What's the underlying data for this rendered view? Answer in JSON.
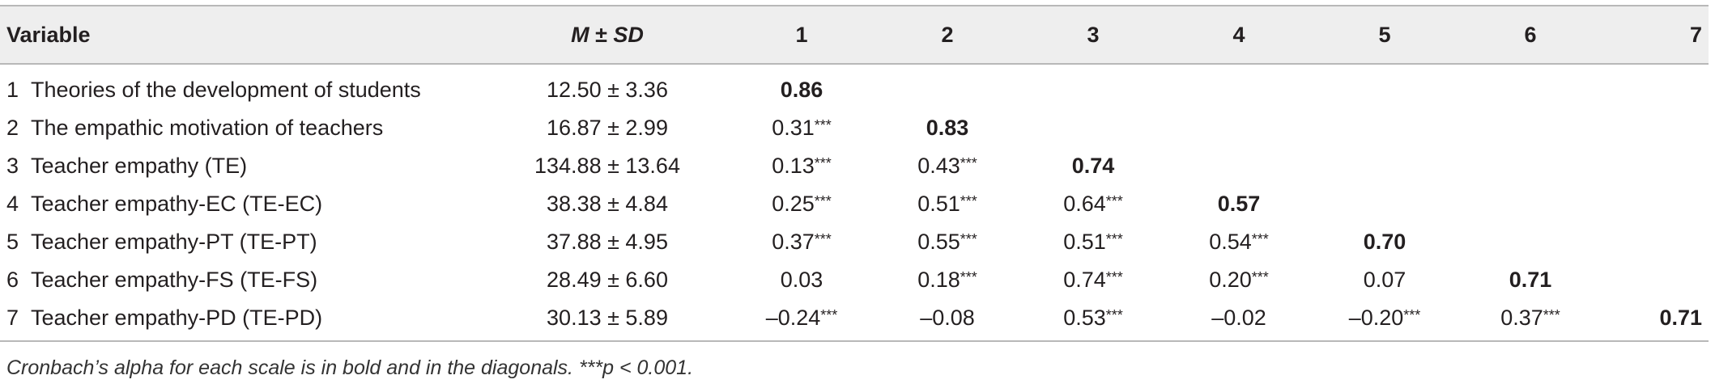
{
  "table": {
    "header": {
      "variable": "Variable",
      "m": "M",
      "pm": " ± ",
      "sd": "SD",
      "cols": [
        "1",
        "2",
        "3",
        "4",
        "5",
        "6",
        "7"
      ]
    },
    "rows": [
      {
        "num": "1",
        "name": "Theories of the development of students",
        "msd": "12.50 ± 3.36",
        "cells": [
          {
            "v": "0.86",
            "diag": true
          },
          {
            "v": ""
          },
          {
            "v": ""
          },
          {
            "v": ""
          },
          {
            "v": ""
          },
          {
            "v": ""
          },
          {
            "v": ""
          }
        ]
      },
      {
        "num": "2",
        "name": "The empathic motivation of teachers",
        "msd": "16.87 ± 2.99",
        "cells": [
          {
            "v": "0.31",
            "sig": "***"
          },
          {
            "v": "0.83",
            "diag": true
          },
          {
            "v": ""
          },
          {
            "v": ""
          },
          {
            "v": ""
          },
          {
            "v": ""
          },
          {
            "v": ""
          }
        ]
      },
      {
        "num": "3",
        "name": "Teacher empathy (TE)",
        "msd": "134.88 ± 13.64",
        "cells": [
          {
            "v": "0.13",
            "sig": "***"
          },
          {
            "v": "0.43",
            "sig": "***"
          },
          {
            "v": "0.74",
            "diag": true
          },
          {
            "v": ""
          },
          {
            "v": ""
          },
          {
            "v": ""
          },
          {
            "v": ""
          }
        ]
      },
      {
        "num": "4",
        "name": "Teacher empathy-EC (TE-EC)",
        "msd": "38.38 ± 4.84",
        "cells": [
          {
            "v": "0.25",
            "sig": "***"
          },
          {
            "v": "0.51",
            "sig": "***"
          },
          {
            "v": "0.64",
            "sig": "***"
          },
          {
            "v": "0.57",
            "diag": true
          },
          {
            "v": ""
          },
          {
            "v": ""
          },
          {
            "v": ""
          }
        ]
      },
      {
        "num": "5",
        "name": "Teacher empathy-PT (TE-PT)",
        "msd": "37.88 ± 4.95",
        "cells": [
          {
            "v": "0.37",
            "sig": "***"
          },
          {
            "v": "0.55",
            "sig": "***"
          },
          {
            "v": "0.51",
            "sig": "***"
          },
          {
            "v": "0.54",
            "sig": "***"
          },
          {
            "v": "0.70",
            "diag": true
          },
          {
            "v": ""
          },
          {
            "v": ""
          }
        ]
      },
      {
        "num": "6",
        "name": "Teacher empathy-FS (TE-FS)",
        "msd": "28.49 ± 6.60",
        "cells": [
          {
            "v": "0.03"
          },
          {
            "v": "0.18",
            "sig": "***"
          },
          {
            "v": "0.74",
            "sig": "***"
          },
          {
            "v": "0.20",
            "sig": "***"
          },
          {
            "v": "0.07"
          },
          {
            "v": "0.71",
            "diag": true
          },
          {
            "v": ""
          }
        ]
      },
      {
        "num": "7",
        "name": "Teacher empathy-PD (TE-PD)",
        "msd": "30.13 ± 5.89",
        "cells": [
          {
            "v": "–0.24",
            "sig": "***"
          },
          {
            "v": "–0.08"
          },
          {
            "v": "0.53",
            "sig": "***"
          },
          {
            "v": "–0.02"
          },
          {
            "v": "–0.20",
            "sig": "***"
          },
          {
            "v": "0.37",
            "sig": "***"
          },
          {
            "v": "0.71",
            "diag": true
          }
        ]
      }
    ]
  },
  "note": "Cronbach’s alpha for each scale is in bold and in the diagonals. ***p < 0.001."
}
